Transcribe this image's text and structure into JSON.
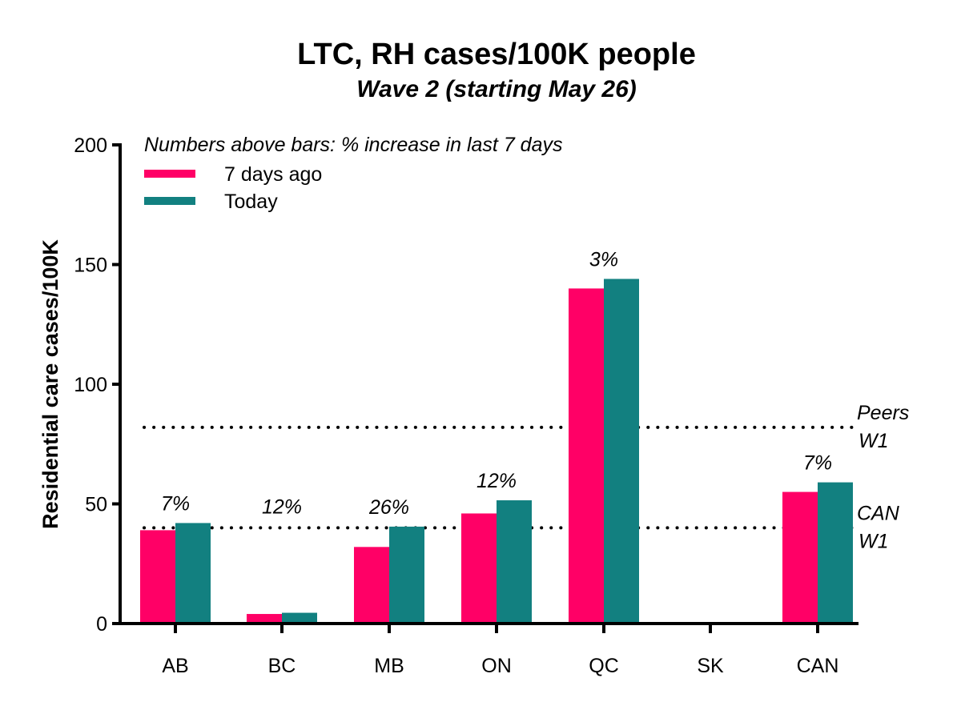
{
  "chart_data": {
    "type": "bar",
    "title": "LTC, RH cases/100K people",
    "subtitle": "Wave 2 (starting May 26)",
    "ylabel": "Residential care cases/100K",
    "xlabel": "",
    "ylim": [
      0,
      200
    ],
    "yticks": [
      "0",
      "50",
      "100",
      "150",
      "200"
    ],
    "categories": [
      "AB",
      "BC",
      "MB",
      "ON",
      "QC",
      "SK",
      "CAN"
    ],
    "series": [
      {
        "name": "7 days ago",
        "color": "#ff0066",
        "values": [
          39,
          4,
          32,
          46,
          140,
          0,
          55
        ]
      },
      {
        "name": "Today",
        "color": "#128080",
        "values": [
          42,
          4.5,
          40.5,
          51.5,
          144,
          0,
          59
        ]
      }
    ],
    "legend": {
      "title": "Numbers above bars: % increase in last 7 days",
      "placement": "top-left"
    },
    "bar_annotations": [
      "7%",
      "12%",
      "26%",
      "12%",
      "3%",
      "",
      "7%"
    ],
    "reference_lines": [
      {
        "value": 82,
        "label_line1": "Peers",
        "label_line2": "W1",
        "style": "dotted"
      },
      {
        "value": 40,
        "label_line1": "CAN",
        "label_line2": "W1",
        "style": "dotted"
      }
    ],
    "grid": false
  }
}
